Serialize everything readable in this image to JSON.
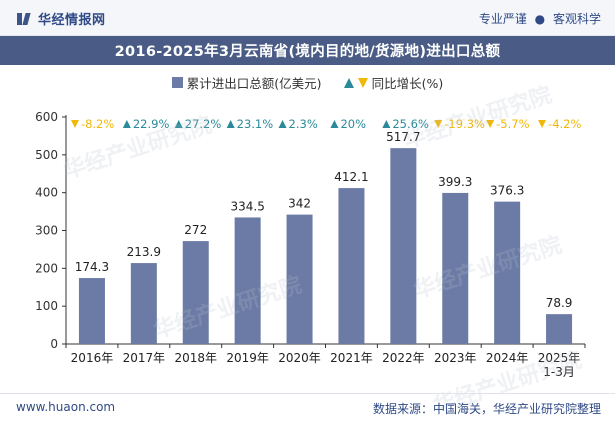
{
  "header": {
    "brand_name": "华经情报网",
    "slogan_left": "专业严谨",
    "slogan_dot": "●",
    "slogan_right": "客观科学"
  },
  "colors": {
    "bar": "#6b7ba5",
    "growth_positive": "#2a8a9a",
    "growth_negative": "#f2b807",
    "title_bg": "#4a5c85"
  },
  "watermark": "华经产业研究院",
  "chart_data": {
    "type": "bar",
    "title": "2016-2025年3月云南省(境内目的地/货源地)进出口总额",
    "categories": [
      "2016年",
      "2017年",
      "2018年",
      "2019年",
      "2020年",
      "2021年",
      "2022年",
      "2023年",
      "2024年",
      "2025年\n1-3月"
    ],
    "series": [
      {
        "name": "累计进出口总额(亿美元)",
        "values": [
          174.3,
          213.9,
          272,
          334.5,
          342,
          412.1,
          517.7,
          399.3,
          376.3,
          78.9
        ]
      },
      {
        "name": "同比增长(%)",
        "values": [
          -8.2,
          22.9,
          27.2,
          23.1,
          2.3,
          20,
          25.6,
          -19.3,
          -5.7,
          -4.2
        ]
      }
    ],
    "value_labels": [
      "174.3",
      "213.9",
      "272",
      "334.5",
      "342",
      "412.1",
      "517.7",
      "399.3",
      "376.3",
      "78.9"
    ],
    "growth_labels": [
      "-8.2%",
      "22.9%",
      "27.2%",
      "23.1%",
      "2.3%",
      "20%",
      "25.6%",
      "-19.3%",
      "-5.7%",
      "-4.2%"
    ],
    "yticks": [
      0,
      100,
      200,
      300,
      400,
      500,
      600
    ],
    "ylim": [
      0,
      600
    ],
    "legend_position": "top-center",
    "grid": false
  },
  "footer": {
    "website": "www.huaon.com",
    "source": "数据来源：中国海关，华经产业研究院整理"
  }
}
